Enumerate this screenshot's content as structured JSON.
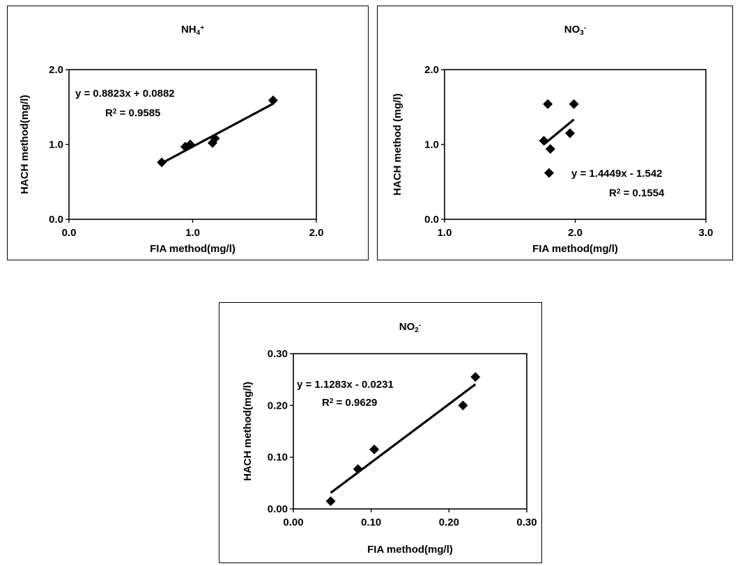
{
  "chart_data": [
    {
      "type": "scatter",
      "title": "NH4+",
      "title_main": "NH",
      "title_sub": "4",
      "title_sup": "+",
      "xlabel": "FIA method(mg/l)",
      "ylabel": "HACH method(mg/l)",
      "xlim": [
        0.0,
        2.0
      ],
      "ylim": [
        0.0,
        2.0
      ],
      "xticks": [
        "0.0",
        "1.0",
        "2.0"
      ],
      "yticks": [
        "0.0",
        "1.0",
        "2.0"
      ],
      "x": [
        0.75,
        0.94,
        0.98,
        1.16,
        1.18,
        1.65
      ],
      "y": [
        0.76,
        0.97,
        1.0,
        1.02,
        1.08,
        1.59
      ],
      "trendline": {
        "slope": 0.8823,
        "intercept": 0.0882,
        "x_range": [
          0.75,
          1.65
        ]
      },
      "equation_label": "y = 0.8823x + 0.0882",
      "r2_prefix": "R",
      "r2_sup": "2",
      "r2_value": " = 0.9585",
      "grid": false,
      "marker_color": "#000000"
    },
    {
      "type": "scatter",
      "title": "NO3-",
      "title_main": "NO",
      "title_sub": "3",
      "title_sup": "-",
      "xlabel": "FIA method(mg/l)",
      "ylabel": "HACH method (mg/l)",
      "xlim": [
        1.0,
        3.0
      ],
      "ylim": [
        0.0,
        2.0
      ],
      "xticks": [
        "1.0",
        "2.0",
        "3.0"
      ],
      "yticks": [
        "0.0",
        "1.0",
        "2.0"
      ],
      "x": [
        1.76,
        1.79,
        1.8,
        1.81,
        1.96,
        1.99
      ],
      "y": [
        1.05,
        1.54,
        0.62,
        0.94,
        1.15,
        1.54
      ],
      "trendline": {
        "slope": 1.4449,
        "intercept": -1.542,
        "x_range": [
          1.76,
          1.99
        ]
      },
      "equation_label": "y = 1.4449x - 1.542",
      "r2_prefix": "R",
      "r2_sup": "2",
      "r2_value": " = 0.1554",
      "grid": false,
      "marker_color": "#000000"
    },
    {
      "type": "scatter",
      "title": "NO2-",
      "title_main": "NO",
      "title_sub": "2",
      "title_sup": "-",
      "xlabel": "FIA method(mg/l)",
      "ylabel": "HACH method(mg/l)",
      "xlim": [
        0.0,
        0.3
      ],
      "ylim": [
        0.0,
        0.3
      ],
      "xticks": [
        "0.00",
        "0.10",
        "0.20",
        "0.30"
      ],
      "yticks": [
        "0.00",
        "0.10",
        "0.20",
        "0.30"
      ],
      "x": [
        0.048,
        0.083,
        0.104,
        0.218,
        0.234
      ],
      "y": [
        0.015,
        0.077,
        0.115,
        0.2,
        0.255
      ],
      "trendline": {
        "slope": 1.1283,
        "intercept": -0.0231,
        "x_range": [
          0.048,
          0.234
        ]
      },
      "equation_label": "y = 1.1283x - 0.0231",
      "r2_prefix": "R",
      "r2_sup": "2",
      "r2_value": " = 0.9629",
      "grid": false,
      "marker_color": "#000000"
    }
  ]
}
